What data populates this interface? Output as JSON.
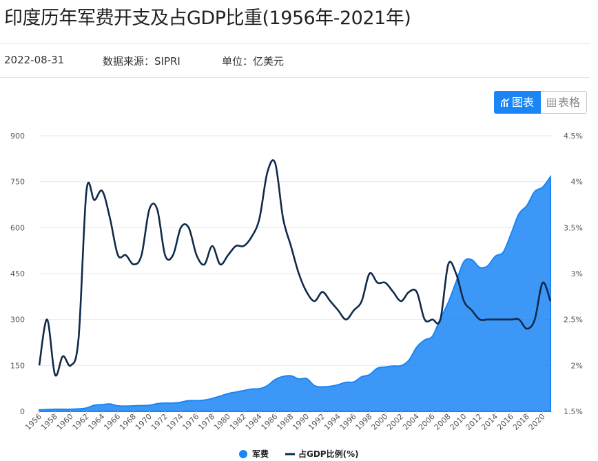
{
  "header": {
    "title": "印度历年军费开支及占GDP比重(1956年-2021年)",
    "date": "2022-08-31",
    "source": "数据来源：SIPRI",
    "unit": "单位：亿美元"
  },
  "toggle": {
    "chart_label": "图表",
    "table_label": "表格"
  },
  "colors": {
    "area": "#1a85f4",
    "line": "#0f2a4a",
    "accent": "#1a85f4"
  },
  "chart_data": {
    "type": "area",
    "x": [
      1956,
      1957,
      1958,
      1959,
      1960,
      1961,
      1962,
      1963,
      1964,
      1965,
      1966,
      1967,
      1968,
      1969,
      1970,
      1971,
      1972,
      1973,
      1974,
      1975,
      1976,
      1977,
      1978,
      1979,
      1980,
      1981,
      1982,
      1983,
      1984,
      1985,
      1986,
      1987,
      1988,
      1989,
      1990,
      1991,
      1992,
      1993,
      1994,
      1995,
      1996,
      1997,
      1998,
      1999,
      2000,
      2001,
      2002,
      2003,
      2004,
      2005,
      2006,
      2007,
      2008,
      2009,
      2010,
      2011,
      2012,
      2013,
      2014,
      2015,
      2016,
      2017,
      2018,
      2019,
      2020,
      2021
    ],
    "x_tick_labels": [
      "1956",
      "1958",
      "1960",
      "1962",
      "1964",
      "1966",
      "1968",
      "1970",
      "1972",
      "1974",
      "1976",
      "1978",
      "1980",
      "1982",
      "1984",
      "1986",
      "1988",
      "1990",
      "1992",
      "1994",
      "1996",
      "1998",
      "2000",
      "2002",
      "2004",
      "2006",
      "2008",
      "2010",
      "2012",
      "2014",
      "2016",
      "2018",
      "2020"
    ],
    "series": [
      {
        "name": "军费",
        "axis": "left",
        "type": "area",
        "values": [
          5,
          6,
          7,
          7,
          7,
          8,
          11,
          20,
          22,
          24,
          18,
          17,
          18,
          19,
          20,
          25,
          27,
          27,
          30,
          35,
          35,
          37,
          42,
          50,
          58,
          63,
          68,
          73,
          74,
          84,
          104,
          114,
          116,
          106,
          107,
          84,
          80,
          82,
          87,
          95,
          96,
          113,
          120,
          141,
          145,
          148,
          149,
          167,
          210,
          233,
          246,
          303,
          355,
          423,
          489,
          495,
          470,
          475,
          507,
          520,
          580,
          645,
          672,
          718,
          732,
          766
        ]
      },
      {
        "name": "占GDP比例(%)",
        "axis": "right",
        "type": "line",
        "values": [
          2.0,
          2.5,
          1.9,
          2.1,
          2.0,
          2.3,
          3.9,
          3.8,
          3.9,
          3.6,
          3.2,
          3.2,
          3.1,
          3.2,
          3.7,
          3.7,
          3.2,
          3.2,
          3.5,
          3.5,
          3.2,
          3.1,
          3.3,
          3.1,
          3.2,
          3.3,
          3.3,
          3.4,
          3.6,
          4.1,
          4.2,
          3.6,
          3.3,
          3.0,
          2.8,
          2.7,
          2.8,
          2.7,
          2.6,
          2.5,
          2.6,
          2.7,
          3.0,
          2.9,
          2.9,
          2.8,
          2.7,
          2.8,
          2.8,
          2.5,
          2.5,
          2.5,
          3.1,
          3.0,
          2.7,
          2.6,
          2.5,
          2.5,
          2.5,
          2.5,
          2.5,
          2.5,
          2.4,
          2.5,
          2.9,
          2.7
        ]
      }
    ],
    "y_left": {
      "min": 0,
      "max": 900,
      "ticks": [
        "0",
        "150",
        "300",
        "450",
        "600",
        "750",
        "900"
      ]
    },
    "y_right": {
      "min": 1.5,
      "max": 4.5,
      "ticks": [
        "1.5%",
        "2%",
        "2.5%",
        "3%",
        "3.5%",
        "4%",
        "4.5%"
      ]
    },
    "grid": true,
    "legend_position": "bottom-center"
  }
}
